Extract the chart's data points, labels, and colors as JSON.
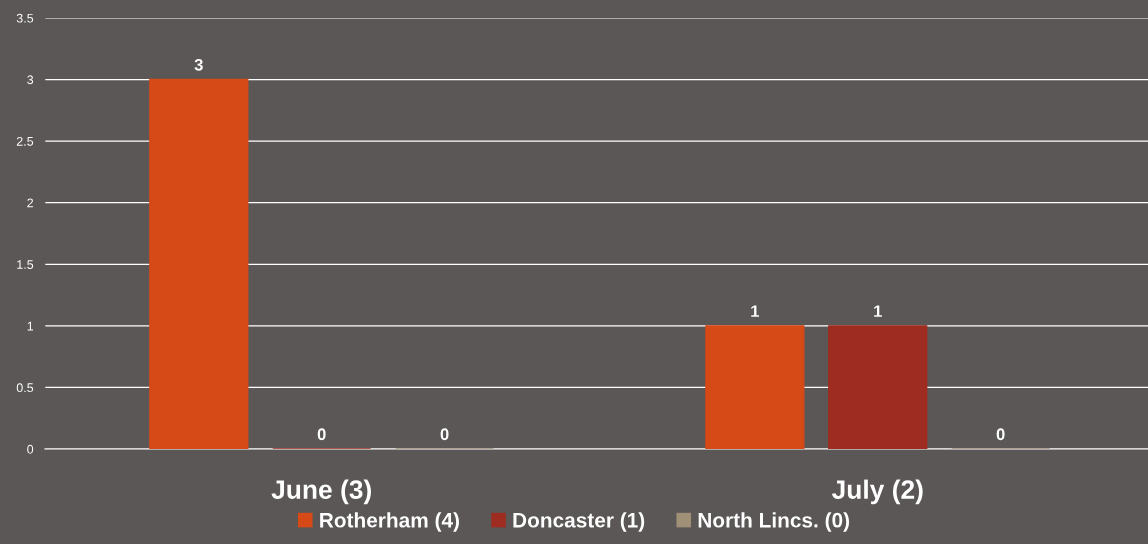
{
  "chart_data": {
    "type": "bar",
    "categories": [
      "June (3)",
      "July (2)"
    ],
    "series": [
      {
        "name": "Rotherham (4)",
        "color": "#d64a18",
        "values": [
          3,
          1
        ]
      },
      {
        "name": "Doncaster (1)",
        "color": "#9e2c20",
        "values": [
          0,
          1
        ]
      },
      {
        "name": "North Lincs. (0)",
        "color": "#a09078",
        "values": [
          0,
          0
        ]
      }
    ],
    "ylim": [
      0,
      3.5
    ],
    "yticks": [
      0,
      0.5,
      1,
      1.5,
      2,
      2.5,
      3,
      3.5
    ],
    "grid": "y",
    "legend": "bottom",
    "data_labels": true
  }
}
